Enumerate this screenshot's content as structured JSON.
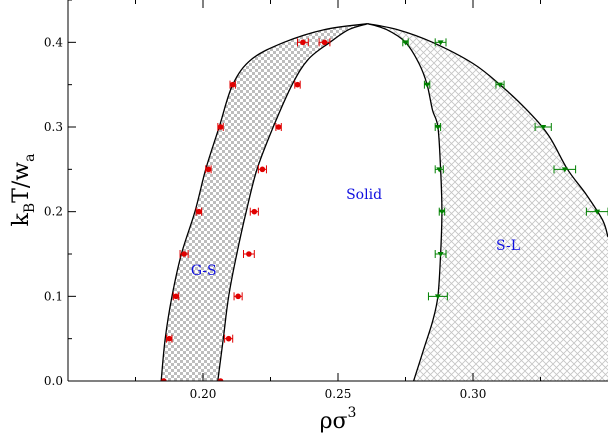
{
  "chart_data": {
    "type": "scatter",
    "title": "",
    "xlabel": {
      "main": "ρσ",
      "sup": "3"
    },
    "ylabel": {
      "k": "k",
      "sub1": "B",
      "mid": "T/w",
      "sub2": "a"
    },
    "xlim": [
      0.15,
      0.35
    ],
    "ylim": [
      0.0,
      0.45
    ],
    "xticks": [
      0.2,
      0.25,
      0.3
    ],
    "xtick_labels": [
      "0.20",
      "0.25",
      "0.30"
    ],
    "yticks": [
      0.0,
      0.1,
      0.2,
      0.3,
      0.4
    ],
    "ytick_labels": [
      "0.0",
      "0.1",
      "0.2",
      "0.3",
      "0.4"
    ],
    "grid": false,
    "region_labels": [
      {
        "text": "G-S",
        "x": 0.1955,
        "y": 0.125
      },
      {
        "text": "Solid",
        "x": 0.253,
        "y": 0.215
      },
      {
        "text": "S-L",
        "x": 0.3085,
        "y": 0.155
      }
    ],
    "series": [
      {
        "color": "#e00000",
        "marker": "circle",
        "x": [
          0.1855,
          0.1875,
          0.19,
          0.193,
          0.1985,
          0.202,
          0.2065,
          0.211,
          0.237,
          0.245,
          0.2065,
          0.2095,
          0.213,
          0.217,
          0.219,
          0.222,
          0.228,
          0.235
        ],
        "y": [
          0.0,
          0.05,
          0.1,
          0.15,
          0.2,
          0.25,
          0.3,
          0.35,
          0.4,
          0.4,
          0.0,
          0.05,
          0.1,
          0.15,
          0.2,
          0.25,
          0.3,
          0.35
        ],
        "xerr": [
          0.0,
          0.001,
          0.001,
          0.0015,
          0.001,
          0.001,
          0.001,
          0.001,
          0.002,
          0.002,
          0.0,
          0.0015,
          0.0015,
          0.002,
          0.0015,
          0.0015,
          0.001,
          0.001
        ]
      },
      {
        "color": "#008000",
        "marker": "triangle",
        "x": [
          0.287,
          0.288,
          0.2885,
          0.2875,
          0.287,
          0.283,
          0.275,
          0.288,
          0.31,
          0.326,
          0.334,
          0.346
        ],
        "y": [
          0.1,
          0.15,
          0.2,
          0.25,
          0.3,
          0.35,
          0.4,
          0.4,
          0.35,
          0.3,
          0.25,
          0.2
        ],
        "xerr": [
          0.0035,
          0.002,
          0.001,
          0.0015,
          0.001,
          0.001,
          0.001,
          0.002,
          0.0015,
          0.003,
          0.004,
          0.004
        ]
      }
    ],
    "hatched_regions": [
      {
        "name": "G-S",
        "pattern": "checkerboard",
        "color": "#bbbbbb"
      },
      {
        "name": "S-L",
        "pattern": "crosshatch",
        "color": "#c4c4c4"
      }
    ],
    "boundary_curves": {
      "gs_left": [
        [
          0.1845,
          0.0
        ],
        [
          0.186,
          0.05
        ],
        [
          0.1885,
          0.1
        ],
        [
          0.192,
          0.15
        ],
        [
          0.197,
          0.2
        ],
        [
          0.201,
          0.25
        ],
        [
          0.206,
          0.3
        ],
        [
          0.211,
          0.35
        ],
        [
          0.218,
          0.38
        ],
        [
          0.23,
          0.4
        ],
        [
          0.245,
          0.415
        ],
        [
          0.261,
          0.422
        ]
      ],
      "gs_right": [
        [
          0.2055,
          0.0
        ],
        [
          0.2075,
          0.05
        ],
        [
          0.2095,
          0.1
        ],
        [
          0.2125,
          0.15
        ],
        [
          0.216,
          0.2
        ],
        [
          0.22,
          0.25
        ],
        [
          0.226,
          0.3
        ],
        [
          0.233,
          0.35
        ],
        [
          0.239,
          0.38
        ],
        [
          0.247,
          0.4
        ],
        [
          0.254,
          0.415
        ],
        [
          0.261,
          0.422
        ]
      ],
      "sl_left": [
        [
          0.261,
          0.422
        ],
        [
          0.268,
          0.415
        ],
        [
          0.275,
          0.4
        ],
        [
          0.28,
          0.375
        ],
        [
          0.283,
          0.35
        ],
        [
          0.285,
          0.32
        ],
        [
          0.287,
          0.3
        ],
        [
          0.288,
          0.25
        ],
        [
          0.2885,
          0.2
        ],
        [
          0.288,
          0.15
        ],
        [
          0.287,
          0.1
        ],
        [
          0.285,
          0.07
        ],
        [
          0.282,
          0.04
        ],
        [
          0.278,
          0.0
        ]
      ],
      "sl_right": [
        [
          0.261,
          0.422
        ],
        [
          0.272,
          0.415
        ],
        [
          0.285,
          0.4
        ],
        [
          0.3,
          0.375
        ],
        [
          0.31,
          0.35
        ],
        [
          0.32,
          0.32
        ],
        [
          0.328,
          0.29
        ],
        [
          0.335,
          0.25
        ],
        [
          0.342,
          0.22
        ],
        [
          0.348,
          0.19
        ],
        [
          0.35,
          0.17
        ]
      ]
    }
  }
}
